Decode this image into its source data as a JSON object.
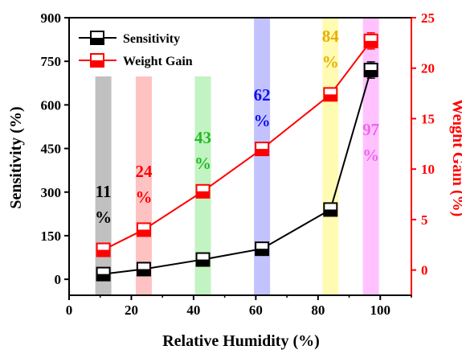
{
  "chart_data": {
    "type": "line",
    "xlabel": "Relative Humidity (%)",
    "ylabel_left": "Sensitivity (%)",
    "ylabel_right": "Weight Gain (%)",
    "xlim": [
      0,
      110
    ],
    "ylim_left": [
      -55,
      900
    ],
    "ylim_right": [
      -2.5,
      25
    ],
    "x_ticks": [
      0,
      20,
      40,
      60,
      80,
      100
    ],
    "y_left_ticks": [
      0,
      150,
      300,
      450,
      600,
      750,
      900
    ],
    "y_right_ticks": [
      0,
      5,
      10,
      15,
      20,
      25
    ],
    "x": [
      11,
      24,
      43,
      62,
      84,
      97
    ],
    "series": [
      {
        "name": "Sensitivity",
        "axis": "left",
        "color": "#000000",
        "values": [
          18,
          35,
          68,
          105,
          240,
          720
        ],
        "errors": [
          6,
          8,
          10,
          12,
          18,
          28
        ]
      },
      {
        "name": "Weight Gain",
        "axis": "right",
        "color": "#ff0000",
        "values": [
          2.0,
          4.0,
          7.8,
          12.0,
          17.4,
          22.7
        ],
        "errors": [
          0.3,
          0.35,
          0.3,
          0.3,
          0.5,
          0.8
        ]
      }
    ],
    "humidity_bands": [
      {
        "label": "11",
        "unit": "%",
        "x": 11,
        "color": "#b0b0b0",
        "text_color": "#000000"
      },
      {
        "label": "24",
        "unit": "%",
        "x": 24,
        "color": "#ffb3b3",
        "text_color": "#ff0000"
      },
      {
        "label": "43",
        "unit": "%",
        "x": 43,
        "color": "#b3f0b3",
        "text_color": "#22bb22"
      },
      {
        "label": "62",
        "unit": "%",
        "x": 62,
        "color": "#b3b3ff",
        "text_color": "#1010ee"
      },
      {
        "label": "84",
        "unit": "%",
        "x": 84,
        "color": "#fffaa0",
        "text_color": "#e8b000"
      },
      {
        "label": "97",
        "unit": "%",
        "x": 97,
        "color": "#ffb3ff",
        "text_color": "#ee66ee"
      }
    ],
    "legend_placement": "top-left"
  }
}
